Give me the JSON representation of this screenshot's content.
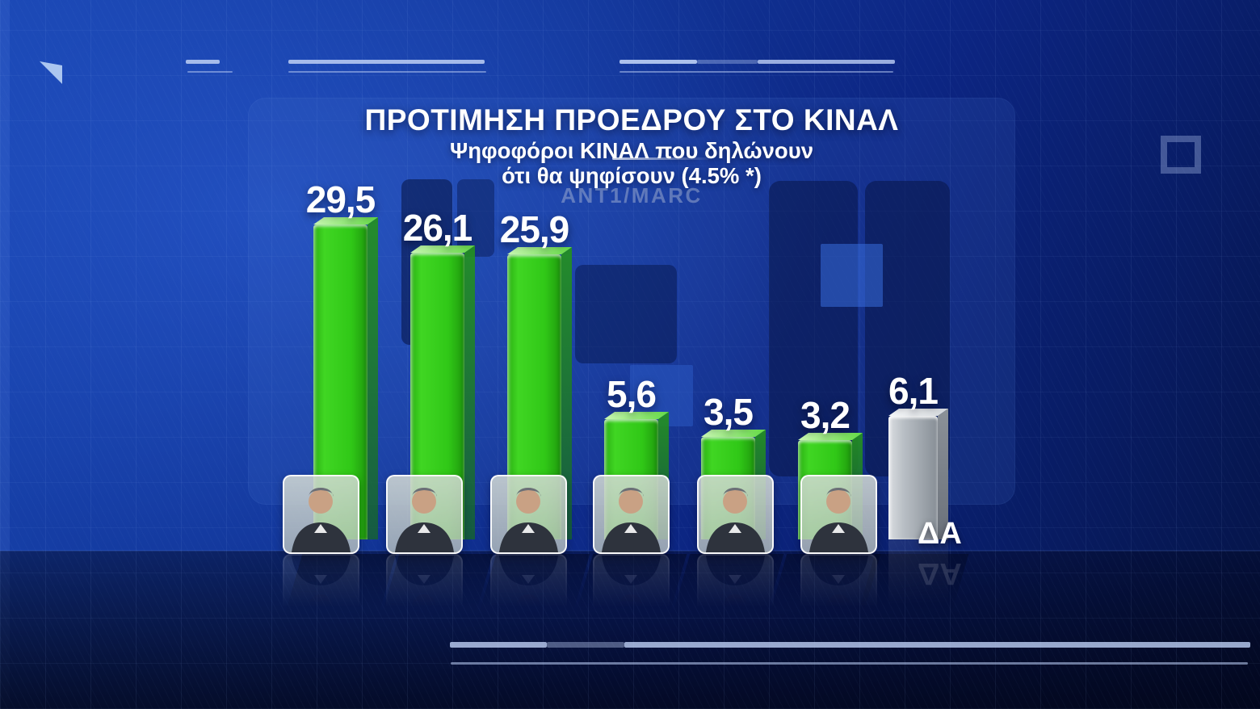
{
  "header": {
    "title": "ΠΡΟΤΙΜΗΣΗ ΠΡΟΕΔΡΟΥ ΣΤΟ ΚΙΝΑΛ",
    "subtitle_line1": "Ψηφοφόροι ΚΙΝΑΛ που δηλώνουν",
    "subtitle_line2": "ότι θα ψηφίσουν (4.5% *)",
    "source": "ANT1/MARC"
  },
  "chart_data": {
    "type": "bar",
    "title": "ΠΡΟΤΙΜΗΣΗ ΠΡΟΕΔΡΟΥ ΣΤΟ ΚΙΝΑΛ",
    "subtitle": "Ψηφοφόροι ΚΙΝΑΛ που δηλώνουν ότι θα ψηφίσουν (4.5% *)",
    "source": "ANT1/MARC",
    "unit": "percent",
    "decimal_style": "comma",
    "axes": "none",
    "legend": "none",
    "value_labels_position": "above",
    "bars": [
      {
        "label": "29,5",
        "value": 29.5,
        "color_name": "green",
        "color": "#2fc51a",
        "category_type": "photo"
      },
      {
        "label": "26,1",
        "value": 26.1,
        "color_name": "green",
        "color": "#2fc51a",
        "category_type": "photo"
      },
      {
        "label": "25,9",
        "value": 25.9,
        "color_name": "green",
        "color": "#2fc51a",
        "category_type": "photo"
      },
      {
        "label": "5,6",
        "value": 5.6,
        "color_name": "green",
        "color": "#2fc51a",
        "category_type": "photo"
      },
      {
        "label": "3,5",
        "value": 3.5,
        "color_name": "green",
        "color": "#2fc51a",
        "category_type": "photo"
      },
      {
        "label": "3,2",
        "value": 3.2,
        "color_name": "green",
        "color": "#2fc51a",
        "category_type": "photo"
      },
      {
        "label": "6,1",
        "value": 6.1,
        "color_name": "grey",
        "color": "#aab0b6",
        "category_type": "label",
        "category_label": "ΔΑ"
      }
    ]
  },
  "colors": {
    "background_bright": "#1946b2",
    "background_dark": "#051343",
    "bar_green": "#2fc51a",
    "bar_grey": "#aab0b6",
    "text": "#ffffff",
    "source_text": "#9aa5bd",
    "decor_line": "#b9cdf2"
  }
}
